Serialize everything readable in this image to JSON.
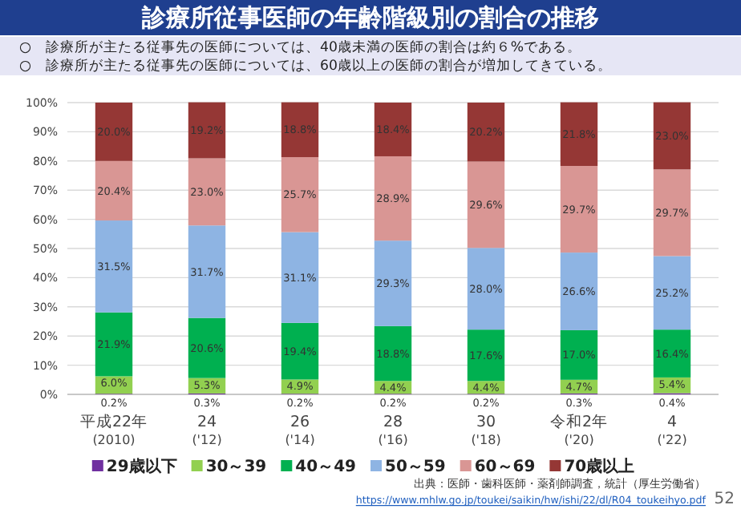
{
  "chart_data": {
    "type": "bar",
    "title": "診療所従事医師の年齢階級別の割合の推移",
    "annotations": [
      "○　診療所が主たる従事先の医師については、40歳未満の医師の割合は約６%である。",
      "○　診療所が主たる従事先の医師については、60歳以上の医師の割合が増加してきている。",
      "出典：医師・歯科医師・薬剤師調査，統計（厚生労働省）",
      "https://www.mhlw.go.jp/toukei/saikin/hw/ishi/22/dl/R04_toukeihyo.pdf",
      "52"
    ],
    "categories": [
      "平成22年\n(2010)",
      "24\n('12)",
      "26\n('14)",
      "28\n('16)",
      "30\n('18)",
      "令和2年\n('20)",
      "4\n('22)"
    ],
    "stacked": true,
    "ylim": [
      0,
      100
    ],
    "yticks": [
      {
        "value": 0,
        "label": "0%"
      },
      {
        "value": 10,
        "label": "10%"
      },
      {
        "value": 20,
        "label": "20%"
      },
      {
        "value": 30,
        "label": "30%"
      },
      {
        "value": 40,
        "label": "40%"
      },
      {
        "value": 50,
        "label": "50%"
      },
      {
        "value": 60,
        "label": "60%"
      },
      {
        "value": 70,
        "label": "70%"
      },
      {
        "value": 80,
        "label": "80%"
      },
      {
        "value": 90,
        "label": "90%"
      },
      {
        "value": 100,
        "label": "100%"
      }
    ],
    "grid": "y",
    "legend": "bottom",
    "series": [
      {
        "name": "29歳以下",
        "color": "#7030a0",
        "values": [
          0.2,
          0.3,
          0.2,
          0.2,
          0.2,
          0.3,
          0.4
        ],
        "value_labels": [
          "0.2%",
          "0.3%",
          "0.2%",
          "0.2%",
          "0.2%",
          "0.3%",
          "0.4%"
        ]
      },
      {
        "name": "30～39",
        "color": "#92d050",
        "values": [
          6.0,
          5.3,
          4.9,
          4.4,
          4.4,
          4.7,
          5.4
        ],
        "value_labels": [
          "6.0%",
          "5.3%",
          "4.9%",
          "4.4%",
          "4.4%",
          "4.7%",
          "5.4%"
        ]
      },
      {
        "name": "40～49",
        "color": "#00b050",
        "values": [
          21.9,
          20.6,
          19.4,
          18.8,
          17.6,
          17.0,
          16.4
        ],
        "value_labels": [
          "21.9%",
          "20.6%",
          "19.4%",
          "18.8%",
          "17.6%",
          "17.0%",
          "16.4%"
        ]
      },
      {
        "name": "50～59",
        "color": "#8eb4e3",
        "values": [
          31.5,
          31.7,
          31.1,
          29.3,
          28.0,
          26.6,
          25.2
        ],
        "value_labels": [
          "31.5%",
          "31.7%",
          "31.1%",
          "29.3%",
          "28.0%",
          "26.6%",
          "25.2%"
        ]
      },
      {
        "name": "60～69",
        "color": "#d99694",
        "values": [
          20.4,
          23.0,
          25.7,
          28.9,
          29.6,
          29.7,
          29.7
        ],
        "value_labels": [
          "20.4%",
          "23.0%",
          "25.7%",
          "28.9%",
          "29.6%",
          "29.7%",
          "29.7%"
        ]
      },
      {
        "name": "70歳以上",
        "color": "#953735",
        "values": [
          20.0,
          19.2,
          18.8,
          18.4,
          20.2,
          21.8,
          23.0
        ],
        "value_labels": [
          "20.0%",
          "19.2%",
          "18.8%",
          "18.4%",
          "20.2%",
          "21.8%",
          "23.0%"
        ]
      }
    ]
  }
}
